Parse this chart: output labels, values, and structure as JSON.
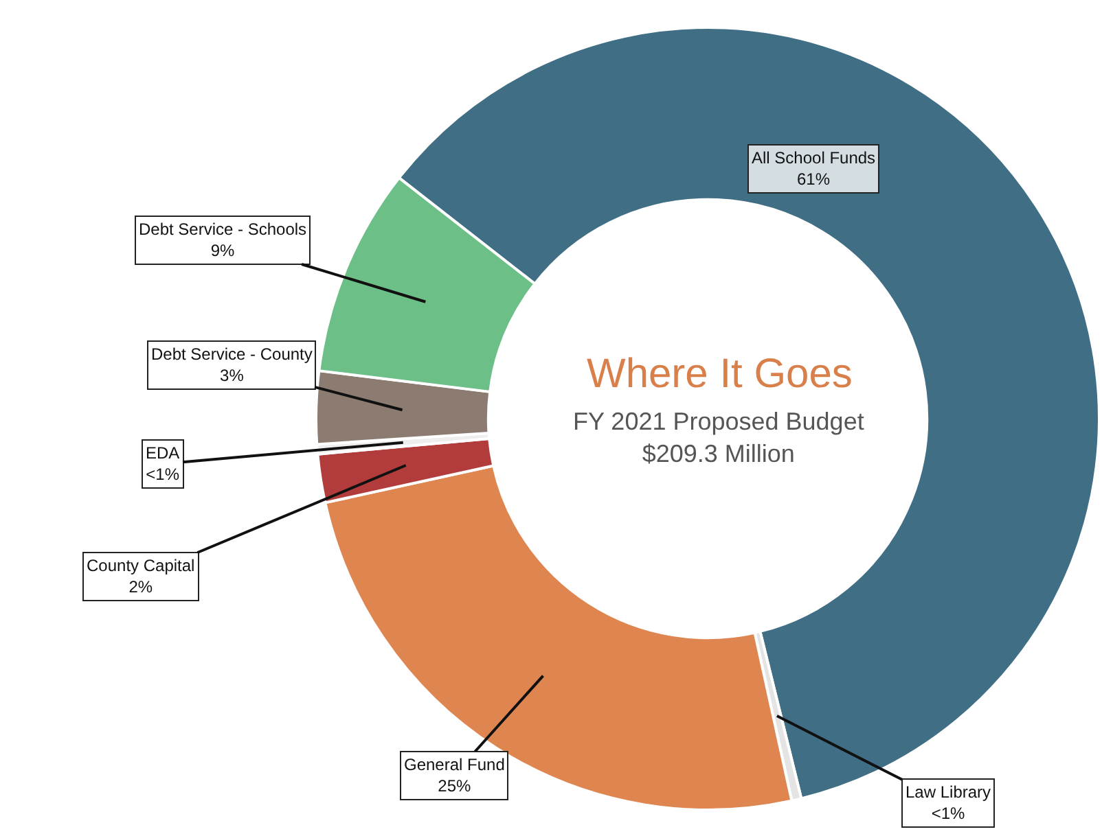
{
  "chart_data": {
    "type": "donut",
    "title": "Where It Goes",
    "subtitle": "FY 2021 Proposed Budget\n$209.3 Million",
    "categories": [
      "All School Funds",
      "Law Library",
      "General Fund",
      "County Capital",
      "EDA",
      "Debt Service - County",
      "Debt Service - Schools"
    ],
    "values": [
      60.6,
      0.4,
      25,
      2,
      0.4,
      3,
      8.6
    ],
    "value_labels": [
      "61%",
      "<1%",
      "25%",
      "2%",
      "<1%",
      "3%",
      "9%"
    ],
    "colors": [
      "#3f6e85",
      "#e4e4e4",
      "#de8550",
      "#b23c3c",
      "#eeeeee",
      "#8c7b70",
      "#6cbf86"
    ]
  }
}
